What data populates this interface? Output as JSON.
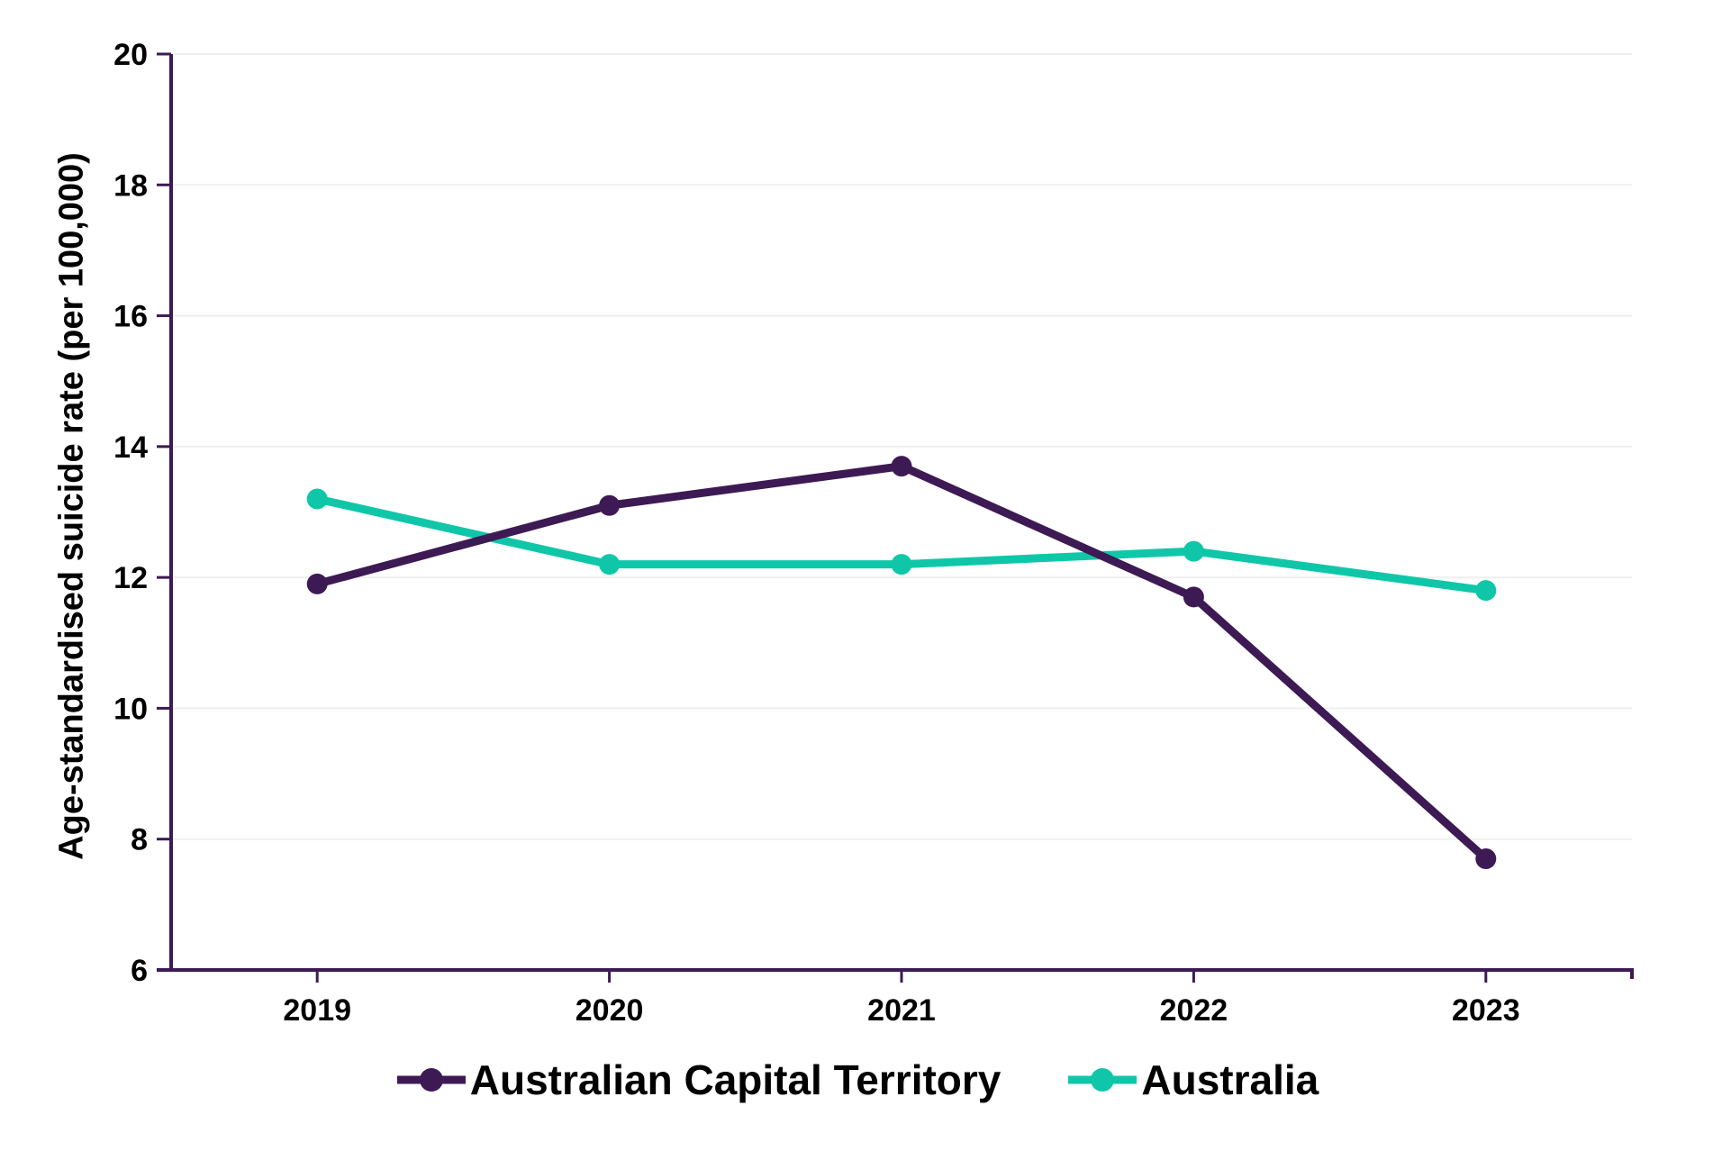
{
  "chart_data": {
    "type": "line",
    "categories": [
      "2019",
      "2020",
      "2021",
      "2022",
      "2023"
    ],
    "series": [
      {
        "name": "Australian Capital Territory",
        "color": "#3D1A54",
        "values": [
          11.9,
          13.1,
          13.7,
          11.7,
          7.7
        ]
      },
      {
        "name": "Australia",
        "color": "#0FC7A8",
        "values": [
          13.2,
          12.2,
          12.2,
          12.4,
          11.8
        ]
      }
    ],
    "title": "",
    "xlabel": "",
    "ylabel": "Age-standardised suicide rate (per 100,000)",
    "ylim": [
      6,
      20
    ],
    "ytick_step": 2,
    "grid": "horizontal",
    "legend_position": "bottom"
  },
  "style_colors": {
    "axis": "#3D1A54",
    "gridline": "#F0F0F0",
    "tick_text": "#000000"
  }
}
